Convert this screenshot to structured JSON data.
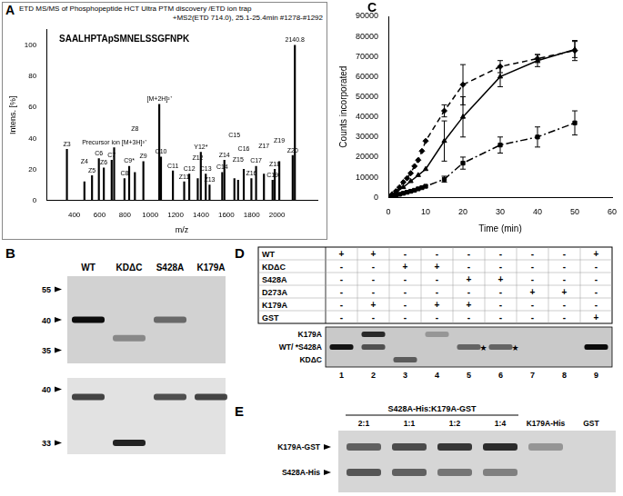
{
  "chart_data": [
    {
      "panel": "A",
      "type": "bar",
      "title": "ETD MS/MS of Phosphopeptide HCT Ultra PTM discovery /ETD ion trap",
      "subtitle": "+MS2(ETD 714.0), 25.1-25.4min #1278-#1292",
      "annotation": "SAALHPTApSMNELSSGFNPK",
      "x_label": "m/z",
      "y_label": "Intens. [%]",
      "xlim": [
        300,
        2200
      ],
      "xticks": [
        400,
        600,
        800,
        1000,
        1200,
        1400,
        1600,
        1800,
        2000
      ],
      "ylim": [
        0,
        110
      ],
      "yticks": [
        0,
        20,
        40,
        60,
        80,
        100
      ],
      "x": [
        342.2,
        480.3,
        540.3,
        594.3,
        633.3,
        695.4,
        714.8,
        796.4,
        833.5,
        878.5,
        945.5,
        1070.9,
        1084.5,
        1178.6,
        1267.6,
        1307.6,
        1374.6,
        1398.8,
        1437.7,
        1467.7,
        1567.7,
        1584.7,
        1663.8,
        1692.8,
        1737.7,
        1797.8,
        1834.9,
        1896.8,
        1965.1,
        1982.0,
        2018.1,
        2123.7,
        2140.8
      ],
      "values": [
        33,
        12,
        16,
        27,
        21,
        26,
        34,
        14,
        22,
        18,
        25,
        62,
        28,
        19,
        12,
        17,
        14,
        31,
        17,
        10,
        18,
        26,
        14,
        13,
        20,
        14,
        22,
        17,
        13,
        20,
        25,
        29,
        100
      ],
      "peak_labels": [
        "Z3",
        "Z4",
        "Z5",
        "C6",
        "Z6",
        "C7",
        "Precursor ion [M+3H]³⁺",
        "C8",
        "C9*",
        "Z8",
        "Z9",
        "[M+2H]²⁺",
        "C10",
        "C11",
        "Z11",
        "C12",
        "Z12",
        "Y12*",
        "C13",
        "Z13",
        "C14",
        "Z14",
        "C15",
        "Z15",
        "C16",
        "Z16",
        "C17",
        "Z17",
        "C19",
        "Z18",
        "Z19",
        "Z20",
        "2140.8"
      ],
      "color": "#000000",
      "grid": false
    },
    {
      "panel": "C",
      "type": "line",
      "x_label": "Time (min)",
      "y_label": "Counts incorporated",
      "xlim": [
        0,
        60
      ],
      "xticks": [
        0,
        10,
        20,
        30,
        40,
        50,
        60
      ],
      "ylim": [
        0,
        90000
      ],
      "yticks": [
        0,
        10000,
        20000,
        30000,
        40000,
        50000,
        60000,
        70000,
        80000,
        90000
      ],
      "grid": false,
      "series": [
        {
          "color": "#000000",
          "marker": "diamond",
          "line_style": "dashed",
          "x": [
            0,
            1,
            2,
            3,
            4,
            5,
            6,
            7,
            8,
            9,
            10,
            15,
            20,
            30,
            40,
            50
          ],
          "values": [
            0,
            1500,
            3000,
            5000,
            7500,
            9500,
            12000,
            15500,
            18500,
            23000,
            28000,
            43000,
            56000,
            65000,
            69000,
            73000
          ],
          "errors": [
            null,
            null,
            null,
            null,
            null,
            null,
            null,
            null,
            null,
            null,
            null,
            3000,
            10000,
            3000,
            2000,
            5000
          ]
        },
        {
          "color": "#000000",
          "marker": "triangle",
          "line_style": "solid",
          "x": [
            0,
            2,
            4,
            6,
            8,
            10,
            15,
            20,
            30,
            40,
            50
          ],
          "values": [
            0,
            2500,
            5000,
            8000,
            11000,
            14000,
            28000,
            40000,
            60000,
            68000,
            73500
          ],
          "errors": [
            null,
            null,
            null,
            null,
            null,
            null,
            10000,
            10000,
            5000,
            3000,
            4000
          ]
        },
        {
          "color": "#000000",
          "marker": "square",
          "line_style": "dashdot",
          "x": [
            0,
            1,
            2,
            3,
            4,
            5,
            6,
            7,
            8,
            9,
            10,
            15,
            20,
            30,
            40,
            50
          ],
          "values": [
            0,
            500,
            1000,
            1500,
            2000,
            2500,
            3000,
            3500,
            4200,
            4800,
            5500,
            9000,
            17000,
            26000,
            30000,
            37000
          ],
          "errors": [
            null,
            null,
            null,
            null,
            null,
            null,
            null,
            null,
            null,
            null,
            null,
            1500,
            3000,
            4000,
            5000,
            6000
          ]
        }
      ]
    }
  ],
  "panel_B": {
    "panel": "B",
    "lanes": [
      "WT",
      "KDΔC",
      "S428A",
      "K179A"
    ],
    "gels": [
      {
        "markers": [
          55,
          40,
          35
        ],
        "bands": [
          {
            "lane": "WT",
            "kda": 40,
            "intensity": 0.95
          },
          {
            "lane": "KDΔC",
            "kda": 37,
            "intensity": 0.35
          },
          {
            "lane": "S428A",
            "kda": 40,
            "intensity": 0.5
          }
        ]
      },
      {
        "markers": [
          40,
          33
        ],
        "bands": [
          {
            "lane": "WT",
            "kda": 39,
            "intensity": 0.7
          },
          {
            "lane": "KDΔC",
            "kda": 33,
            "intensity": 0.85
          },
          {
            "lane": "S428A",
            "kda": 39,
            "intensity": 0.65
          },
          {
            "lane": "K179A",
            "kda": 39,
            "intensity": 0.7
          }
        ]
      }
    ]
  },
  "panel_D": {
    "panel": "D",
    "rows": [
      {
        "name": "WT",
        "cells": [
          "+",
          "+",
          "-",
          "-",
          "-",
          "-",
          "-",
          "-",
          "+"
        ]
      },
      {
        "name": "KDΔC",
        "cells": [
          "-",
          "-",
          "+",
          "+",
          "-",
          "-",
          "-",
          "-",
          "-"
        ]
      },
      {
        "name": "S428A",
        "cells": [
          "-",
          "-",
          "-",
          "-",
          "+",
          "+",
          "-",
          "-",
          "-"
        ]
      },
      {
        "name": "D273A",
        "cells": [
          "-",
          "-",
          "-",
          "-",
          "-",
          "-",
          "+",
          "+",
          "-"
        ]
      },
      {
        "name": "K179A",
        "cells": [
          "-",
          "+",
          "-",
          "+",
          "+",
          "-",
          "-",
          "-",
          "-"
        ]
      },
      {
        "name": "GST",
        "cells": [
          "-",
          "-",
          "-",
          "-",
          "-",
          "-",
          "-",
          "-",
          "+"
        ]
      }
    ],
    "lanes": [
      1,
      2,
      3,
      4,
      5,
      6,
      7,
      8,
      9
    ],
    "band_labels": [
      "K179A",
      "WT/ *S428A",
      "KDΔC"
    ],
    "star": "★",
    "bands": [
      {
        "lane": 1,
        "level": "WT/ *S428A",
        "intensity": 0.9,
        "starred": false
      },
      {
        "lane": 2,
        "level": "K179A",
        "intensity": 0.8,
        "starred": false
      },
      {
        "lane": 2,
        "level": "WT/ *S428A",
        "intensity": 0.6,
        "starred": false
      },
      {
        "lane": 3,
        "level": "KDΔC",
        "intensity": 0.55,
        "starred": false
      },
      {
        "lane": 4,
        "level": "K179A",
        "intensity": 0.25,
        "starred": false
      },
      {
        "lane": 5,
        "level": "WT/ *S428A",
        "intensity": 0.5,
        "starred": true
      },
      {
        "lane": 6,
        "level": "WT/ *S428A",
        "intensity": 0.5,
        "starred": true
      },
      {
        "lane": 9,
        "level": "WT/ *S428A",
        "intensity": 0.95,
        "starred": false
      }
    ]
  },
  "panel_E": {
    "panel": "E",
    "group_label": "S428A-His:K179A-GST",
    "lanes": [
      {
        "label": "2:1",
        "in_group": true
      },
      {
        "label": "1:1",
        "in_group": true
      },
      {
        "label": "1:2",
        "in_group": true
      },
      {
        "label": "1:4",
        "in_group": true
      },
      {
        "label": "K179A-His",
        "in_group": false
      },
      {
        "label": "GST",
        "in_group": false
      }
    ],
    "band_labels": [
      "K179A-GST",
      "S428A-His"
    ],
    "bands": [
      {
        "lane": "2:1",
        "level": "K179A-GST",
        "intensity": 0.55
      },
      {
        "lane": "1:1",
        "level": "K179A-GST",
        "intensity": 0.65
      },
      {
        "lane": "1:2",
        "level": "K179A-GST",
        "intensity": 0.75
      },
      {
        "lane": "1:4",
        "level": "K179A-GST",
        "intensity": 0.8
      },
      {
        "lane": "2:1",
        "level": "S428A-His",
        "intensity": 0.6
      },
      {
        "lane": "1:1",
        "level": "S428A-His",
        "intensity": 0.55
      },
      {
        "lane": "1:2",
        "level": "S428A-His",
        "intensity": 0.45
      },
      {
        "lane": "1:4",
        "level": "S428A-His",
        "intensity": 0.4
      },
      {
        "lane": "K179A-His",
        "level": "K179A-GST",
        "intensity": 0.3
      }
    ]
  }
}
